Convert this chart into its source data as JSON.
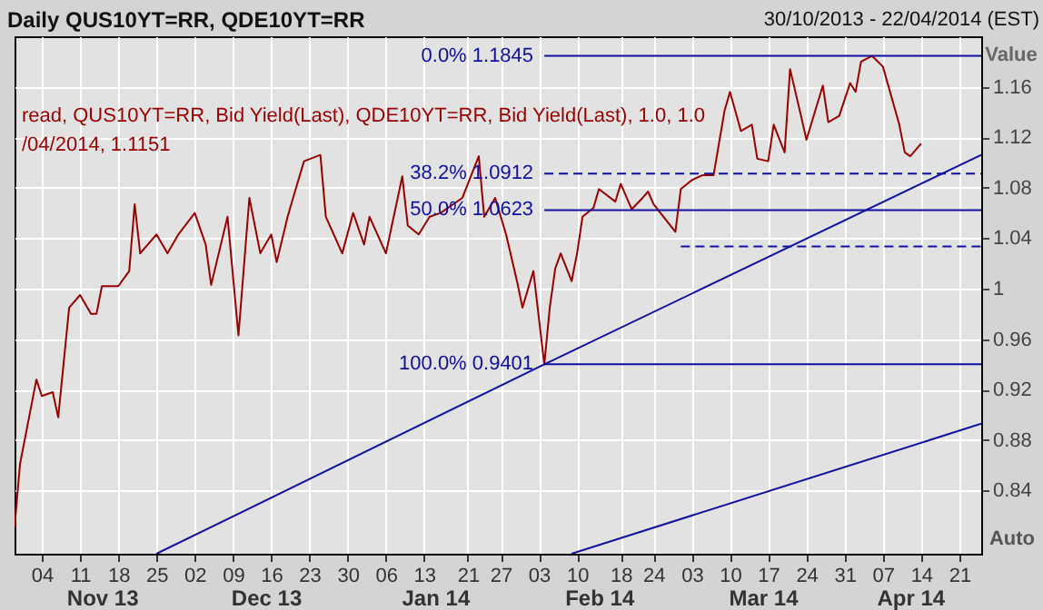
{
  "chart_data": {
    "type": "line",
    "title": "Daily QUS10YT=RR, QDE10YT=RR",
    "subtitle": "30/10/2013 - 22/04/2014 (EST)",
    "ylabel": "Value",
    "xlim": [
      "2013-10-30",
      "2014-04-25"
    ],
    "ylim": [
      0.79,
      1.2
    ],
    "yticks": [
      0.84,
      0.88,
      0.92,
      0.96,
      1,
      1.04,
      1.08,
      1.12,
      1.16
    ],
    "xticks": [
      {
        "value": "2013-11-04",
        "label": "04"
      },
      {
        "value": "2013-11-11",
        "label": "11"
      },
      {
        "value": "2013-11-18",
        "label": "18"
      },
      {
        "value": "2013-11-25",
        "label": "25"
      },
      {
        "value": "2013-12-02",
        "label": "02"
      },
      {
        "value": "2013-12-09",
        "label": "09"
      },
      {
        "value": "2013-12-16",
        "label": "16"
      },
      {
        "value": "2013-12-23",
        "label": "23"
      },
      {
        "value": "2013-12-30",
        "label": "30"
      },
      {
        "value": "2014-01-06",
        "label": "06"
      },
      {
        "value": "2014-01-13",
        "label": "13"
      },
      {
        "value": "2014-01-21",
        "label": "21"
      },
      {
        "value": "2014-01-27",
        "label": "27"
      },
      {
        "value": "2014-02-03",
        "label": "03"
      },
      {
        "value": "2014-02-10",
        "label": "10"
      },
      {
        "value": "2014-02-18",
        "label": "18"
      },
      {
        "value": "2014-02-24",
        "label": "24"
      },
      {
        "value": "2014-03-03",
        "label": "03"
      },
      {
        "value": "2014-03-10",
        "label": "10"
      },
      {
        "value": "2014-03-17",
        "label": "17"
      },
      {
        "value": "2014-03-24",
        "label": "24"
      },
      {
        "value": "2014-03-31",
        "label": "31"
      },
      {
        "value": "2014-04-07",
        "label": "07"
      },
      {
        "value": "2014-04-14",
        "label": "14"
      },
      {
        "value": "2014-04-21",
        "label": "21"
      }
    ],
    "x2lim": [
      "2013-10-30",
      "2014-04-25"
    ],
    "x2ticks": [
      {
        "value": "2013-11-15",
        "label": "Nov 13"
      },
      {
        "value": "2013-12-15",
        "label": "Dec 13"
      },
      {
        "value": "2014-01-15",
        "label": "Jan 14"
      },
      {
        "value": "2014-02-14",
        "label": "Feb 14"
      },
      {
        "value": "2014-03-16",
        "label": "Mar 14"
      },
      {
        "value": "2014-04-12",
        "label": "Apr 14"
      }
    ],
    "grid": true,
    "legend": false,
    "series": [
      {
        "name": "read, QUS10YT=RR, Bid Yield(Last), QDE10YT=RR, Bid Yield(Last), 1.0, 1.0",
        "color": "#990000",
        "line_style": "solid",
        "x": [
          "2013-10-30",
          "2013-10-31",
          "2013-11-03",
          "2013-11-04",
          "2013-11-06",
          "2013-11-07",
          "2013-11-09",
          "2013-11-11",
          "2013-11-13",
          "2013-11-14",
          "2013-11-15",
          "2013-11-18",
          "2013-11-20",
          "2013-11-21",
          "2013-11-22",
          "2013-11-25",
          "2013-11-27",
          "2013-11-29",
          "2013-12-02",
          "2013-12-04",
          "2013-12-05",
          "2013-12-08",
          "2013-12-10",
          "2013-12-12",
          "2013-12-14",
          "2013-12-16",
          "2013-12-17",
          "2013-12-19",
          "2013-12-20",
          "2013-12-22",
          "2013-12-25",
          "2013-12-26",
          "2013-12-29",
          "2013-12-31",
          "2014-01-02",
          "2014-01-03",
          "2014-01-06",
          "2014-01-09",
          "2014-01-10",
          "2014-01-12",
          "2014-01-14",
          "2014-01-16",
          "2014-01-20",
          "2014-01-23",
          "2014-01-24",
          "2014-01-26",
          "2014-01-28",
          "2014-01-30",
          "2014-01-31",
          "2014-02-02",
          "2014-02-04",
          "2014-02-05",
          "2014-02-06",
          "2014-02-07",
          "2014-02-09",
          "2014-02-10",
          "2014-02-11",
          "2014-02-13",
          "2014-02-14",
          "2014-02-17",
          "2014-02-18",
          "2014-02-20",
          "2014-02-22",
          "2014-02-23",
          "2014-02-24",
          "2014-02-28",
          "2014-03-01",
          "2014-03-03",
          "2014-03-05",
          "2014-03-07",
          "2014-03-09",
          "2014-03-10",
          "2014-03-12",
          "2014-03-14",
          "2014-03-15",
          "2014-03-17",
          "2014-03-18",
          "2014-03-20",
          "2014-03-21",
          "2014-03-23",
          "2014-03-24",
          "2014-03-27",
          "2014-03-28",
          "2014-03-30",
          "2014-04-01",
          "2014-04-02",
          "2014-04-03",
          "2014-04-05",
          "2014-04-07",
          "2014-04-10",
          "2014-04-11",
          "2014-04-12",
          "2014-04-14"
        ],
        "values": [
          0.811,
          0.861,
          0.928,
          0.915,
          0.918,
          0.898,
          0.985,
          0.995,
          0.98,
          0.98,
          1.002,
          1.002,
          1.014,
          1.067,
          1.028,
          1.043,
          1.028,
          1.043,
          1.06,
          1.035,
          1.003,
          1.057,
          0.963,
          1.072,
          1.028,
          1.043,
          1.021,
          1.057,
          1.072,
          1.101,
          1.106,
          1.057,
          1.028,
          1.06,
          1.035,
          1.057,
          1.028,
          1.089,
          1.05,
          1.043,
          1.057,
          1.06,
          1.072,
          1.105,
          1.057,
          1.072,
          1.043,
          1.006,
          0.985,
          1.014,
          0.9401,
          0.985,
          1.016,
          1.028,
          1.006,
          1.028,
          1.057,
          1.064,
          1.079,
          1.069,
          1.083,
          1.063,
          1.072,
          1.077,
          1.067,
          1.045,
          1.079,
          1.086,
          1.09,
          1.09,
          1.141,
          1.156,
          1.125,
          1.13,
          1.103,
          1.101,
          1.13,
          1.108,
          1.174,
          1.137,
          1.118,
          1.161,
          1.132,
          1.137,
          1.163,
          1.156,
          1.18,
          1.1845,
          1.176,
          1.13,
          1.108,
          1.105,
          1.1151
        ]
      },
      {
        "color": "#1010a0",
        "line_style": "solid",
        "x": [
          "2014-02-04",
          "2014-04-25"
        ],
        "values": [
          1.1845,
          1.1845
        ]
      },
      {
        "color": "#1010a0",
        "line_style": "dashed",
        "x": [
          "2014-02-04",
          "2014-04-25"
        ],
        "values": [
          1.0912,
          1.0912
        ]
      },
      {
        "color": "#1010a0",
        "line_style": "solid",
        "x": [
          "2014-02-04",
          "2014-04-25"
        ],
        "values": [
          1.0623,
          1.0623
        ]
      },
      {
        "color": "#1010a0",
        "line_style": "dashed",
        "x": [
          "2014-03-01",
          "2014-04-25"
        ],
        "values": [
          1.0334,
          1.0334
        ]
      },
      {
        "color": "#1010a0",
        "line_style": "solid",
        "x": [
          "2014-02-04",
          "2014-04-25"
        ],
        "values": [
          0.9401,
          0.9401
        ]
      },
      {
        "color": "#1010a0",
        "line_style": "solid",
        "x": [
          "2013-11-25",
          "2014-02-04",
          "2014-04-25"
        ],
        "values": [
          0.79,
          0.9401,
          1.106
        ]
      },
      {
        "color": "#1010a0",
        "line_style": "solid",
        "x": [
          "2014-02-09",
          "2014-04-25"
        ],
        "values": [
          0.79,
          0.893
        ]
      }
    ],
    "annotations": [
      {
        "text": "0.0%      1.1845",
        "x": "2014-02-04",
        "y": 1.1845
      },
      {
        "text": "38.2% 1.0912",
        "x": "2014-02-04",
        "y": 1.0912
      },
      {
        "text": "50.0% 1.0623",
        "x": "2014-02-04",
        "y": 1.0623
      },
      {
        "text": "100.0% 0.9401",
        "x": "2014-02-04",
        "y": 0.9401
      },
      "/04/2014, 1.1151",
      "Auto"
    ]
  }
}
